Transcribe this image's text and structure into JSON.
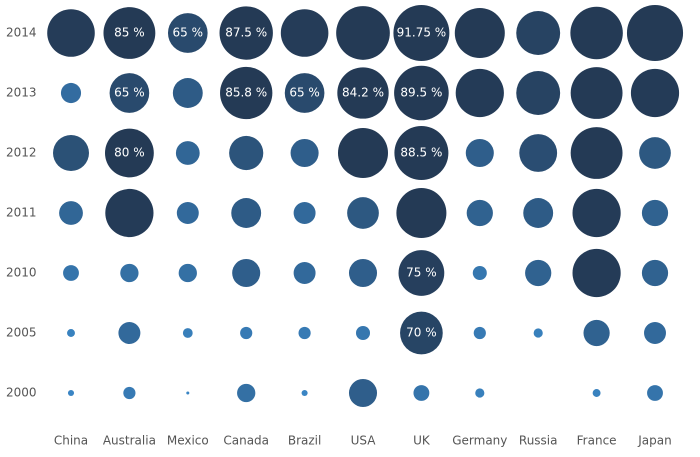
{
  "chart_data": {
    "type": "bubble",
    "categories": [
      "China",
      "Australia",
      "Mexico",
      "Canada",
      "Brazil",
      "USA",
      "UK",
      "Germany",
      "Russia",
      "France",
      "Japan"
    ],
    "color_low": "#3a85c4",
    "color_high": "#243a55",
    "series": [
      {
        "name": "2014",
        "values": [
          78,
          85,
          65,
          87.5,
          78,
          88,
          91.75,
          82,
          72,
          86,
          92
        ],
        "value_labels": [
          null,
          "85 %",
          "65 %",
          "87.5 %",
          null,
          null,
          "91.75 %",
          null,
          null,
          null,
          null
        ]
      },
      {
        "name": "2013",
        "values": [
          33,
          65,
          49,
          85.8,
          65,
          84.2,
          89.5,
          79,
          72,
          85,
          79
        ],
        "value_labels": [
          null,
          "65 %",
          null,
          "85.8 %",
          "65 %",
          "84.2 %",
          "89.5 %",
          null,
          null,
          null,
          null
        ]
      },
      {
        "name": "2012",
        "values": [
          59,
          80,
          39,
          56,
          46,
          82,
          88.5,
          46,
          62,
          85,
          52
        ],
        "value_labels": [
          null,
          "80 %",
          null,
          null,
          null,
          null,
          "88.5 %",
          null,
          null,
          null,
          null
        ]
      },
      {
        "name": "2011",
        "values": [
          39,
          79,
          36,
          49,
          36,
          52,
          82,
          43,
          49,
          79,
          43
        ],
        "value_labels": [
          null,
          null,
          null,
          null,
          null,
          null,
          null,
          null,
          null,
          null,
          null
        ]
      },
      {
        "name": "2010",
        "values": [
          26,
          30,
          30,
          46,
          36,
          46,
          75,
          23,
          43,
          79,
          43
        ],
        "value_labels": [
          null,
          null,
          null,
          null,
          null,
          null,
          "75 %",
          null,
          null,
          null,
          null
        ]
      },
      {
        "name": "2005",
        "values": [
          13,
          36,
          16,
          20,
          20,
          23,
          70,
          20,
          15,
          43,
          36
        ],
        "value_labels": [
          null,
          null,
          null,
          null,
          null,
          null,
          "70 %",
          null,
          null,
          null,
          null
        ]
      },
      {
        "name": "2000",
        "values": [
          10,
          20,
          5,
          30,
          10,
          46,
          26,
          15,
          null,
          13,
          26
        ],
        "value_labels": [
          null,
          null,
          null,
          null,
          null,
          null,
          null,
          null,
          null,
          null,
          null
        ]
      }
    ]
  }
}
